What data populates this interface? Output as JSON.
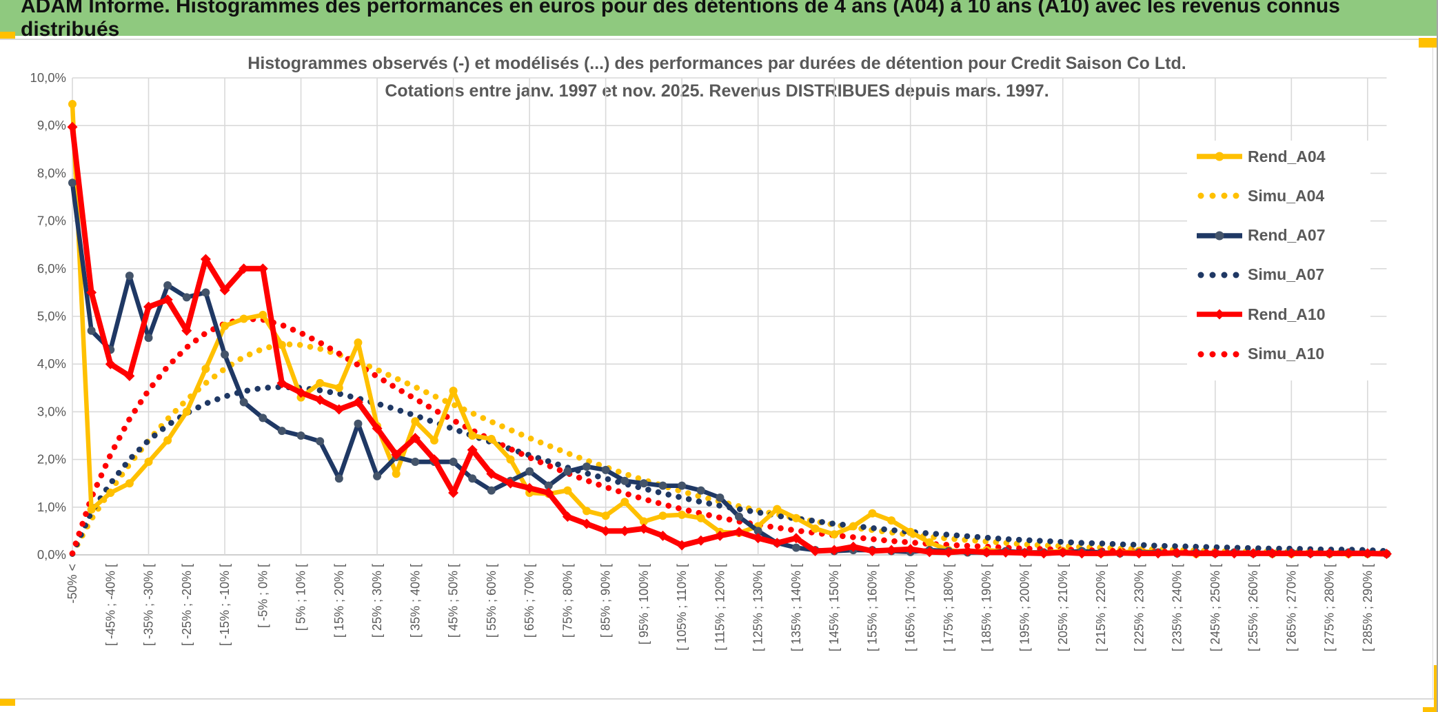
{
  "banner": {
    "title": "ADAM Informe. Histogrammes des performances en euros pour des détentions de 4 ans (A04) à 10 ans (A10) avec les revenus connus distribués",
    "bg_color": "#8FC97F",
    "accent_color": "#FFC000"
  },
  "chart": {
    "title_line1": "Histogrammes observés (-) et modélisés (...) des performances par durées de détention pour Credit Saison Co Ltd.",
    "title_line2": "Cotations entre janv. 1997 et nov. 2025. Revenus DISTRIBUES depuis mars. 1997.",
    "axis_text_color": "#595959",
    "grid_color": "#D9D9D9",
    "zero_line_color": "#BFBFBF"
  },
  "chart_data": {
    "type": "line",
    "title": "Histogrammes observés (-) et modélisés (...) des performances par durées de détention pour Credit Saison Co Ltd.",
    "subtitle": "Cotations entre janv. 1997 et nov. 2025. Revenus DISTRIBUES depuis mars. 1997.",
    "ylim": [
      0,
      10
    ],
    "y_tick_labels": [
      "0,0%",
      "1,0%",
      "2,0%",
      "3,0%",
      "4,0%",
      "5,0%",
      "6,0%",
      "7,0%",
      "8,0%",
      "9,0%",
      "10,0%"
    ],
    "grid": true,
    "legend_position": "right",
    "x_bin_width_pct": 5,
    "x_points_total": 70,
    "x_labels_every": 2,
    "x_tick_labels": [
      "-50% <",
      "[ -45% ; -40% [",
      "[ -35% ; -30% [",
      "[ -25% ; -20% [",
      "[ -15% ; -10% [",
      "[ -5% ; 0% [",
      "[ 5% ; 10% [",
      "[ 15% ; 20% [",
      "[ 25% ; 30% [",
      "[ 35% ; 40% [",
      "[ 45% ; 50% [",
      "[ 55% ; 60% [",
      "[ 65% ; 70% [",
      "[ 75% ; 80% [",
      "[ 85% ; 90% [",
      "[ 95% ; 100% [",
      "[ 105% ; 110% [",
      "[ 115% ; 120% [",
      "[ 125% ; 130% [",
      "[ 135% ; 140% [",
      "[ 145% ; 150% [",
      "[ 155% ; 160% [",
      "[ 165% ; 170% [",
      "[ 175% ; 180% [",
      "[ 185% ; 190% [",
      "[ 195% ; 200% [",
      "[ 205% ; 210% [",
      "[ 215% ; 220% [",
      "[ 225% ; 230% [",
      "[ 235% ; 240% [",
      "[ 245% ; 250% [",
      "[ 255% ; 260% [",
      "[ 265% ; 270% [",
      "[ 275% ; 280% [",
      "[ 285% ; 290% ["
    ],
    "series": [
      {
        "name": "Simu_A04",
        "color": "#FFC000",
        "line": "dotted",
        "marker": "none",
        "values": [
          0.02,
          0.75,
          1.35,
          1.9,
          2.4,
          2.85,
          3.25,
          3.6,
          3.9,
          4.15,
          4.32,
          4.42,
          4.4,
          4.32,
          4.2,
          4.05,
          3.88,
          3.7,
          3.52,
          3.33,
          3.15,
          2.97,
          2.79,
          2.62,
          2.45,
          2.29,
          2.13,
          1.98,
          1.84,
          1.7,
          1.57,
          1.45,
          1.33,
          1.22,
          1.12,
          1.02,
          0.93,
          0.85,
          0.77,
          0.7,
          0.63,
          0.57,
          0.52,
          0.47,
          0.42,
          0.38,
          0.34,
          0.31,
          0.28,
          0.25,
          0.22,
          0.2,
          0.18,
          0.16,
          0.15,
          0.13,
          0.12,
          0.11,
          0.1,
          0.09,
          0.08,
          0.07,
          0.07,
          0.06,
          0.06,
          0.05,
          0.05,
          0.04,
          0.04,
          0.04
        ]
      },
      {
        "name": "Simu_A07",
        "color": "#1F3864",
        "line": "dotted",
        "marker": "none",
        "values": [
          0.02,
          0.9,
          1.5,
          2.0,
          2.4,
          2.72,
          2.97,
          3.17,
          3.32,
          3.43,
          3.5,
          3.52,
          3.5,
          3.45,
          3.38,
          3.28,
          3.17,
          3.05,
          2.92,
          2.78,
          2.64,
          2.5,
          2.36,
          2.22,
          2.09,
          1.96,
          1.83,
          1.71,
          1.6,
          1.49,
          1.39,
          1.29,
          1.2,
          1.11,
          1.03,
          0.96,
          0.89,
          0.82,
          0.76,
          0.71,
          0.65,
          0.61,
          0.56,
          0.52,
          0.48,
          0.45,
          0.42,
          0.39,
          0.36,
          0.33,
          0.31,
          0.29,
          0.27,
          0.25,
          0.24,
          0.22,
          0.21,
          0.19,
          0.18,
          0.17,
          0.16,
          0.15,
          0.14,
          0.13,
          0.13,
          0.12,
          0.11,
          0.11,
          0.1,
          0.08
        ]
      },
      {
        "name": "Simu_A10",
        "color": "#FF0000",
        "line": "dotted",
        "marker": "none",
        "values": [
          0.03,
          1.2,
          2.1,
          2.85,
          3.45,
          3.95,
          4.35,
          4.65,
          4.85,
          4.95,
          4.93,
          4.82,
          4.65,
          4.45,
          4.22,
          3.98,
          3.74,
          3.5,
          3.27,
          3.04,
          2.82,
          2.61,
          2.41,
          2.22,
          2.04,
          1.87,
          1.71,
          1.56,
          1.42,
          1.29,
          1.17,
          1.06,
          0.96,
          0.87,
          0.78,
          0.7,
          0.63,
          0.57,
          0.51,
          0.46,
          0.41,
          0.37,
          0.33,
          0.29,
          0.26,
          0.23,
          0.21,
          0.19,
          0.17,
          0.15,
          0.13,
          0.12,
          0.11,
          0.1,
          0.09,
          0.08,
          0.07,
          0.07,
          0.06,
          0.06,
          0.05,
          0.05,
          0.04,
          0.04,
          0.04,
          0.03,
          0.03,
          0.03,
          0.03,
          0.03
        ]
      },
      {
        "name": "Rend_A04",
        "color": "#FFC000",
        "line": "solid",
        "marker": "circle",
        "marker_color": "#FFC000",
        "values": [
          9.45,
          0.95,
          1.3,
          1.5,
          1.95,
          2.4,
          3.0,
          3.9,
          4.8,
          4.95,
          5.03,
          4.4,
          3.3,
          3.6,
          3.5,
          4.45,
          2.7,
          1.7,
          2.8,
          2.4,
          3.44,
          2.5,
          2.43,
          2.0,
          1.3,
          1.28,
          1.35,
          0.92,
          0.82,
          1.11,
          0.7,
          0.82,
          0.84,
          0.77,
          0.48,
          0.46,
          0.6,
          0.96,
          0.77,
          0.55,
          0.43,
          0.6,
          0.87,
          0.72,
          0.48,
          0.26,
          0.1,
          0.05,
          0.1,
          0.07,
          0.05,
          0.05,
          0.08,
          0.05,
          0.03,
          0.05,
          0.08,
          0.05,
          0.03,
          0.02,
          0.03,
          0.05,
          0.03,
          0.02,
          0.02,
          0.03,
          0.02,
          0.02,
          0.02,
          0.02
        ]
      },
      {
        "name": "Rend_A07",
        "color": "#1F3864",
        "line": "solid",
        "marker": "circle",
        "marker_color": "#44546A",
        "values": [
          7.8,
          4.7,
          4.3,
          5.85,
          4.55,
          5.65,
          5.4,
          5.5,
          4.2,
          3.2,
          2.87,
          2.6,
          2.5,
          2.38,
          1.6,
          2.75,
          1.65,
          2.05,
          1.95,
          1.95,
          1.95,
          1.6,
          1.35,
          1.55,
          1.75,
          1.45,
          1.75,
          1.85,
          1.78,
          1.55,
          1.5,
          1.45,
          1.45,
          1.35,
          1.2,
          0.8,
          0.5,
          0.25,
          0.15,
          0.1,
          0.08,
          0.1,
          0.1,
          0.08,
          0.06,
          0.1,
          0.08,
          0.05,
          0.05,
          0.08,
          0.05,
          0.05,
          0.05,
          0.08,
          0.05,
          0.03,
          0.05,
          0.05,
          0.03,
          0.05,
          0.03,
          0.05,
          0.03,
          0.03,
          0.05,
          0.03,
          0.03,
          0.05,
          0.03,
          0.02
        ]
      },
      {
        "name": "Rend_A10",
        "color": "#FF0000",
        "line": "solid",
        "marker": "diamond",
        "marker_color": "#FF0000",
        "values": [
          8.97,
          5.5,
          4.0,
          3.75,
          5.2,
          5.35,
          4.7,
          6.2,
          5.55,
          6.0,
          6.0,
          3.6,
          3.4,
          3.25,
          3.05,
          3.2,
          2.65,
          2.1,
          2.45,
          2.0,
          1.3,
          2.2,
          1.7,
          1.5,
          1.4,
          1.3,
          0.8,
          0.65,
          0.5,
          0.5,
          0.55,
          0.4,
          0.2,
          0.3,
          0.4,
          0.48,
          0.35,
          0.25,
          0.35,
          0.08,
          0.1,
          0.17,
          0.08,
          0.1,
          0.12,
          0.06,
          0.05,
          0.08,
          0.05,
          0.05,
          0.04,
          0.03,
          0.05,
          0.03,
          0.03,
          0.04,
          0.03,
          0.03,
          0.04,
          0.03,
          0.03,
          0.03,
          0.03,
          0.03,
          0.03,
          0.03,
          0.03,
          0.03,
          0.03,
          0.02
        ]
      }
    ],
    "legend": [
      {
        "label": "Rend_A04",
        "color": "#FFC000",
        "style": "solid",
        "marker": "circle",
        "marker_color": "#FFC000"
      },
      {
        "label": "Simu_A04",
        "color": "#FFC000",
        "style": "dotted",
        "marker": "none",
        "marker_color": "#FFC000"
      },
      {
        "label": "Rend_A07",
        "color": "#1F3864",
        "style": "solid",
        "marker": "circle",
        "marker_color": "#44546A"
      },
      {
        "label": "Simu_A07",
        "color": "#1F3864",
        "style": "dotted",
        "marker": "none",
        "marker_color": "#1F3864"
      },
      {
        "label": "Rend_A10",
        "color": "#FF0000",
        "style": "solid",
        "marker": "diamond",
        "marker_color": "#FF0000"
      },
      {
        "label": "Simu_A10",
        "color": "#FF0000",
        "style": "dotted",
        "marker": "none",
        "marker_color": "#FF0000"
      }
    ]
  }
}
